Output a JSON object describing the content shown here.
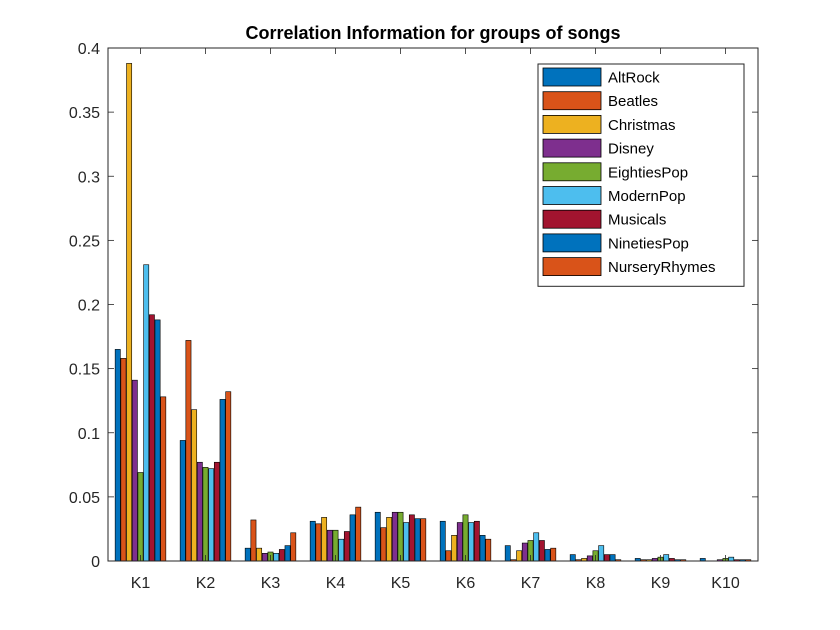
{
  "chart_data": {
    "type": "bar",
    "title": "Correlation Information for groups of songs",
    "xlabel": "",
    "ylabel": "",
    "ylim": [
      0,
      0.4
    ],
    "yticks": [
      "0",
      "0.05",
      "0.1",
      "0.15",
      "0.2",
      "0.25",
      "0.3",
      "0.35",
      "0.4"
    ],
    "grid": false,
    "legend_position": "top-right",
    "categories": [
      "K1",
      "K2",
      "K3",
      "K4",
      "K5",
      "K6",
      "K7",
      "K8",
      "K9",
      "K10"
    ],
    "series": [
      {
        "name": "AltRock",
        "color": "#0072BD",
        "values": [
          0.165,
          0.094,
          0.01,
          0.031,
          0.038,
          0.031,
          0.012,
          0.005,
          0.002,
          0.002
        ]
      },
      {
        "name": "Beatles",
        "color": "#D95319",
        "values": [
          0.158,
          0.172,
          0.032,
          0.029,
          0.026,
          0.008,
          0.001,
          0.001,
          0.001,
          0.0
        ]
      },
      {
        "name": "Christmas",
        "color": "#EDB120",
        "values": [
          0.388,
          0.118,
          0.01,
          0.034,
          0.034,
          0.02,
          0.008,
          0.002,
          0.001,
          0.0
        ]
      },
      {
        "name": "Disney",
        "color": "#7E2F8E",
        "values": [
          0.141,
          0.077,
          0.006,
          0.024,
          0.038,
          0.03,
          0.014,
          0.004,
          0.002,
          0.001
        ]
      },
      {
        "name": "EightiesPop",
        "color": "#77AC30",
        "values": [
          0.069,
          0.073,
          0.007,
          0.024,
          0.038,
          0.036,
          0.016,
          0.008,
          0.003,
          0.002
        ]
      },
      {
        "name": "ModernPop",
        "color": "#4DBEEE",
        "values": [
          0.231,
          0.072,
          0.006,
          0.017,
          0.03,
          0.03,
          0.022,
          0.012,
          0.005,
          0.003
        ]
      },
      {
        "name": "Musicals",
        "color": "#A2142F",
        "values": [
          0.192,
          0.077,
          0.009,
          0.023,
          0.036,
          0.031,
          0.016,
          0.005,
          0.002,
          0.001
        ]
      },
      {
        "name": "NinetiesPop",
        "color": "#0072BD",
        "values": [
          0.188,
          0.126,
          0.012,
          0.036,
          0.033,
          0.02,
          0.009,
          0.005,
          0.001,
          0.001
        ]
      },
      {
        "name": "NurseryRhymes",
        "color": "#D95319",
        "values": [
          0.128,
          0.132,
          0.022,
          0.042,
          0.033,
          0.017,
          0.01,
          0.001,
          0.001,
          0.001
        ]
      }
    ]
  }
}
